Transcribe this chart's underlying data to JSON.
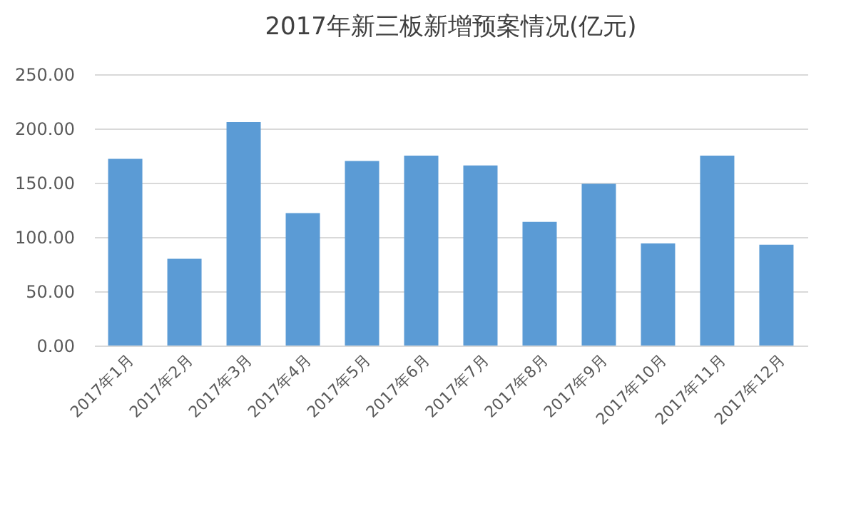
{
  "chart_data": {
    "type": "bar",
    "title": "2017年新三板新增预案情况(亿元)",
    "categories": [
      "2017年1月",
      "2017年2月",
      "2017年3月",
      "2017年4月",
      "2017年5月",
      "2017年6月",
      "2017年7月",
      "2017年8月",
      "2017年9月",
      "2017年10月",
      "2017年11月",
      "2017年12月"
    ],
    "values": [
      172,
      80,
      206,
      122,
      170,
      175,
      166,
      114,
      149,
      94,
      175,
      93
    ],
    "color": "#5b9bd5",
    "ylim": [
      0,
      250
    ],
    "yticks": [
      {
        "value": 0,
        "label": "0.00"
      },
      {
        "value": 50,
        "label": "50.00"
      },
      {
        "value": 100,
        "label": "100.00"
      },
      {
        "value": 150,
        "label": "150.00"
      },
      {
        "value": 200,
        "label": "200.00"
      },
      {
        "value": 250,
        "label": "250.00"
      }
    ],
    "grid": "y"
  }
}
